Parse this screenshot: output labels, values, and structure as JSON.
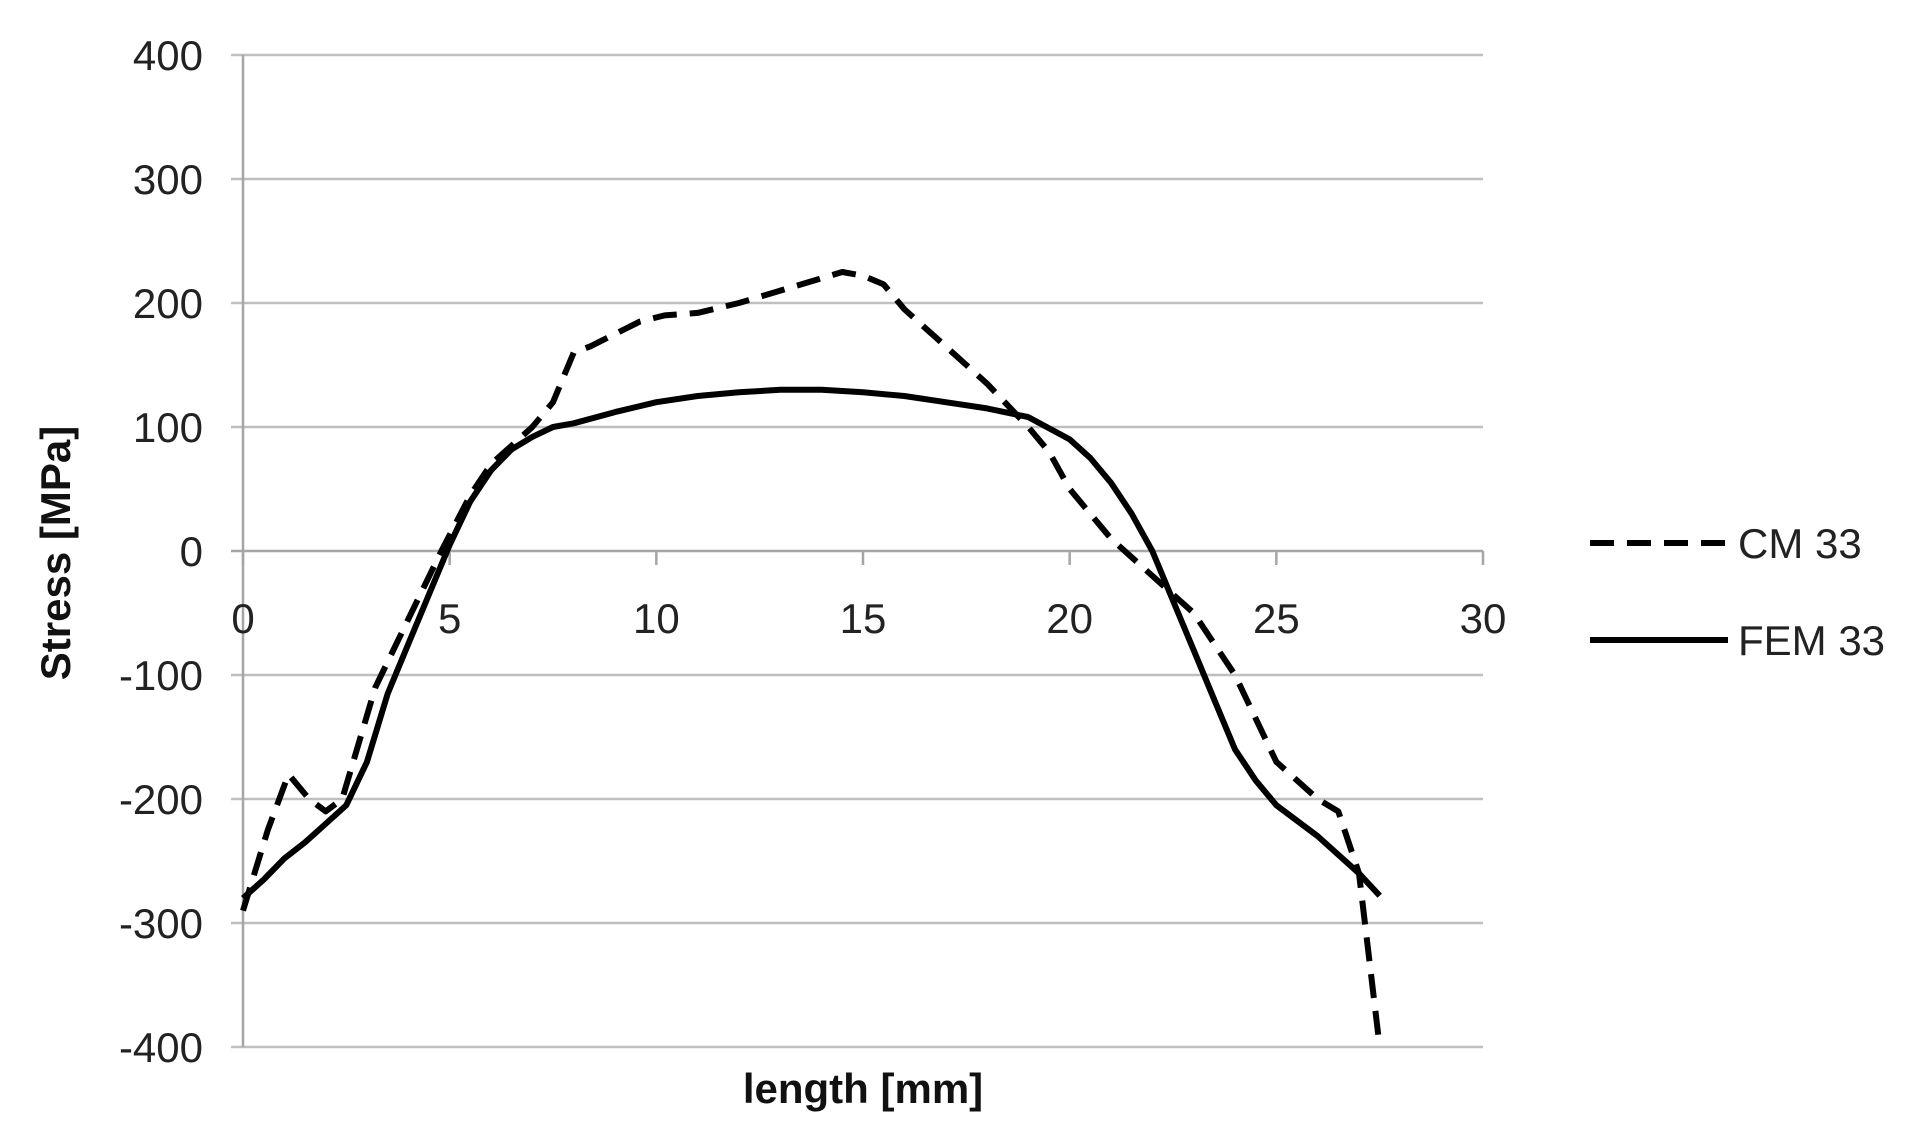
{
  "chart_data": {
    "type": "line",
    "title": "",
    "xlabel": "length [mm]",
    "ylabel": "Stress [MPa]",
    "xlim": [
      0,
      30
    ],
    "ylim": [
      -400,
      400
    ],
    "x_ticks": [
      0,
      5,
      10,
      15,
      20,
      25,
      30
    ],
    "y_ticks": [
      400,
      300,
      200,
      100,
      0,
      -100,
      -200,
      -300,
      -400
    ],
    "grid": "horizontal",
    "legend_position": "right",
    "series": [
      {
        "name": "CM 33",
        "style": "dashed",
        "color": "#000000",
        "x": [
          0,
          0.6,
          1.1,
          1.6,
          2.0,
          2.4,
          3.2,
          4.0,
          4.8,
          5.5,
          6.0,
          6.5,
          7.0,
          7.5,
          8.0,
          8.4,
          9.0,
          9.6,
          10.2,
          11.0,
          12.0,
          13.0,
          14.0,
          14.5,
          15.0,
          15.5,
          16.0,
          17.0,
          18.0,
          19.0,
          19.5,
          20.0,
          20.5,
          21.0,
          22.0,
          23.0,
          24.0,
          25.0,
          26.0,
          26.5,
          27.0,
          27.5
        ],
        "y": [
          -290,
          -225,
          -180,
          -200,
          -210,
          -200,
          -110,
          -55,
          0,
          45,
          70,
          85,
          100,
          120,
          160,
          165,
          175,
          185,
          190,
          192,
          200,
          210,
          220,
          225,
          222,
          215,
          195,
          165,
          135,
          100,
          80,
          50,
          30,
          10,
          -20,
          -50,
          -100,
          -170,
          -200,
          -210,
          -260,
          -400
        ]
      },
      {
        "name": "FEM 33",
        "style": "solid",
        "color": "#000000",
        "x": [
          0,
          0.5,
          1.0,
          1.5,
          2.0,
          2.5,
          3.0,
          3.5,
          4.0,
          4.5,
          5.0,
          5.5,
          6.0,
          6.5,
          7.0,
          7.5,
          8.0,
          9.0,
          10.0,
          11.0,
          12.0,
          13.0,
          14.0,
          15.0,
          16.0,
          17.0,
          18.0,
          19.0,
          20.0,
          20.5,
          21.0,
          21.5,
          22.0,
          22.5,
          23.0,
          23.5,
          24.0,
          24.5,
          25.0,
          26.0,
          27.0,
          27.5
        ],
        "y": [
          -280,
          -265,
          -248,
          -235,
          -220,
          -205,
          -170,
          -115,
          -75,
          -35,
          5,
          40,
          65,
          82,
          92,
          100,
          103,
          112,
          120,
          125,
          128,
          130,
          130,
          128,
          125,
          120,
          115,
          108,
          90,
          75,
          55,
          30,
          0,
          -40,
          -80,
          -120,
          -160,
          -185,
          -205,
          -230,
          -260,
          -278
        ]
      }
    ]
  }
}
